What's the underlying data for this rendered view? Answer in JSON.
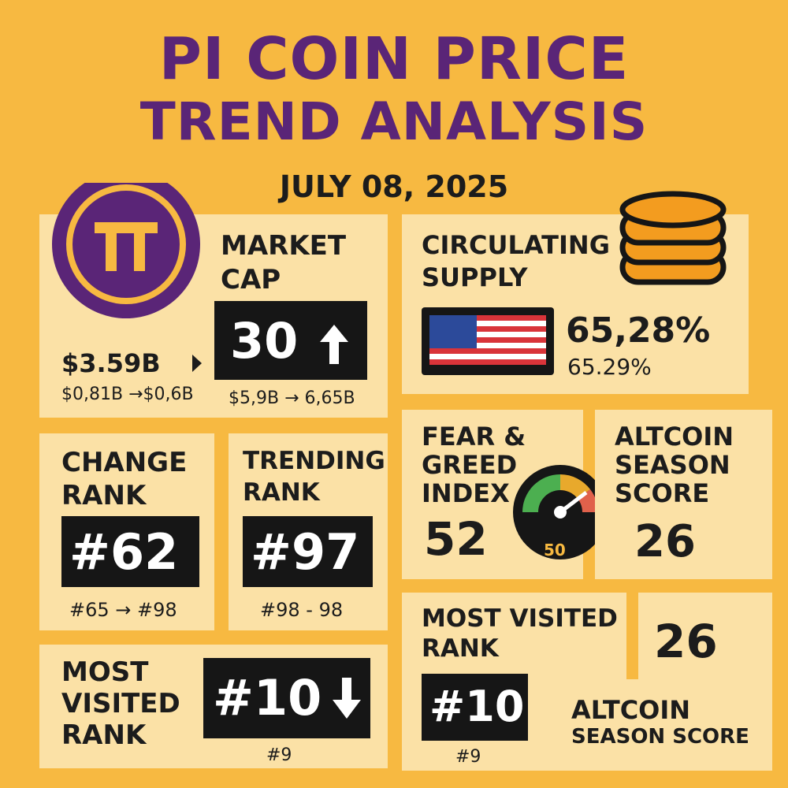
{
  "header": {
    "title_lines": [
      "PI COIN PRICE",
      "TREND ANALYSIS"
    ],
    "date": "JULY 08, 2025"
  },
  "market_cap": {
    "label_lines": [
      "MARKET",
      "CAP"
    ],
    "value": "$3.59B",
    "value_sub": "$0,81B →$0,6B",
    "badge": "30",
    "badge_sub": "$5,9B → 6,65B"
  },
  "circulating_supply": {
    "label_lines": [
      "CIRCULATING",
      "SUPPLY"
    ],
    "value": "65,28%",
    "value_sub": "65.29%"
  },
  "change_rank": {
    "label_lines": [
      "CHANGE",
      "RANK"
    ],
    "badge": "#62",
    "sub": "#65 → #98"
  },
  "trending_rank": {
    "label_lines": [
      "TRENDING",
      "RANK"
    ],
    "badge": "#97",
    "sub": "#98 - 98"
  },
  "fear_greed": {
    "label_lines": [
      "FEAR &",
      "GREED",
      "INDEX"
    ],
    "value": "52",
    "gauge_label": "50"
  },
  "altcoin_season": {
    "label_lines": [
      "ALTCOIN",
      "SEASON",
      "SCORE"
    ],
    "value": "26"
  },
  "most_visited_left": {
    "label_lines": [
      "MOST",
      "VISITED",
      "RANK"
    ],
    "badge": "#10",
    "sub": "#9"
  },
  "most_visited_right": {
    "label_lines": [
      "MOST VISITED",
      "RANK"
    ],
    "badge": "#10",
    "sub": "#9"
  },
  "altcoin_bottom": {
    "value": "26",
    "label_lines": [
      "ALTCOIN",
      "SEASON SCORE"
    ]
  }
}
